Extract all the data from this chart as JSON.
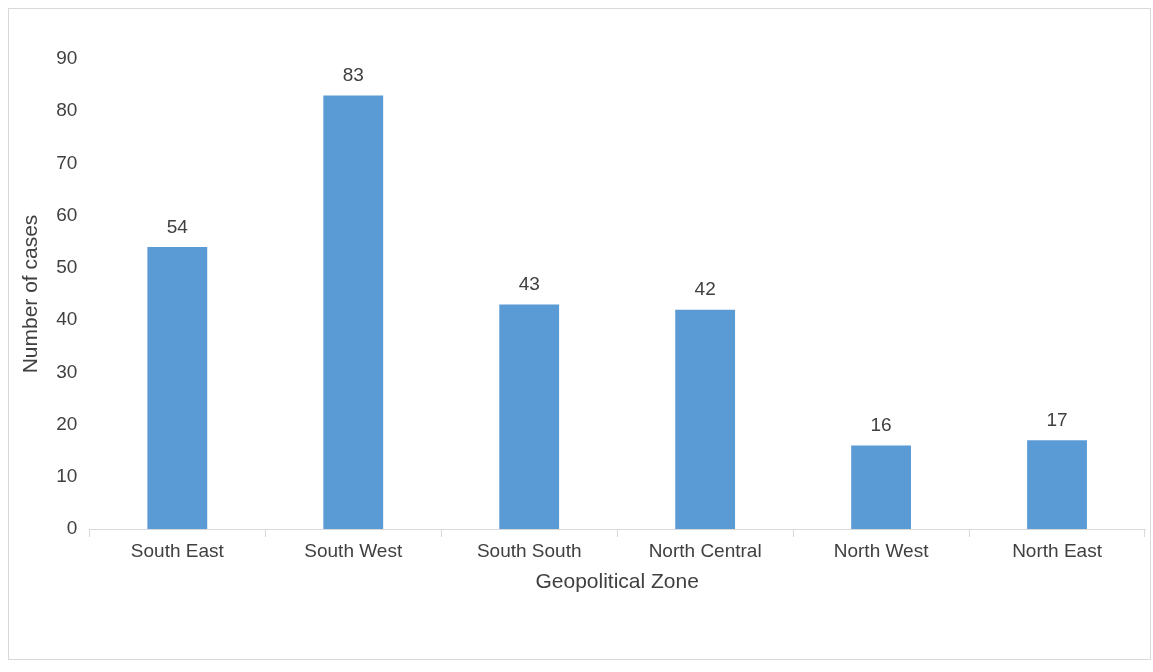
{
  "chart_data": {
    "type": "bar",
    "xlabel": "Geopolitical Zone",
    "ylabel": "Number of cases",
    "categories": [
      "South East",
      "South West",
      "South South",
      "North Central",
      "North West",
      "North East"
    ],
    "values": [
      54,
      83,
      43,
      42,
      16,
      17
    ],
    "color": "#5b9bd5",
    "ylim": [
      0,
      90
    ],
    "yticks": [
      0,
      10,
      20,
      30,
      40,
      50,
      60,
      70,
      80,
      90
    ],
    "grid": false,
    "data_labels": true
  }
}
